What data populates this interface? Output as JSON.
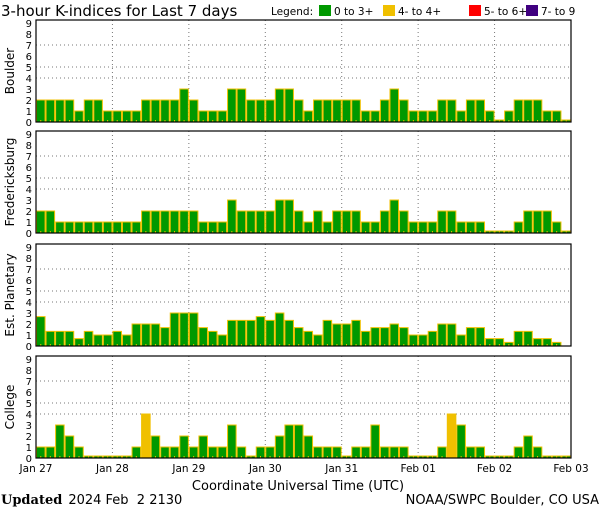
{
  "chart_data": {
    "title": "3-hour K-indices for Last 7 days",
    "type": "bar",
    "legend": {
      "label": "Legend:",
      "placement": "top-right",
      "items": [
        {
          "label": "0 to 3+",
          "color": "#009900"
        },
        {
          "label": "4- to 4+",
          "color": "#f0c000"
        },
        {
          "label": "5- to 6+",
          "color": "#ff0000"
        },
        {
          "label": "7- to 9",
          "color": "#400080"
        }
      ]
    },
    "bar_outline_color": "#f0c000",
    "xlabel": "Coordinate Universal Time (UTC)",
    "x_tick_labels": [
      "Jan 27",
      "Jan 28",
      "Jan 29",
      "Jan 30",
      "Jan 31",
      "Feb 01",
      "Feb 02",
      "Feb 03"
    ],
    "y_tick_labels": [
      "0",
      "1",
      "2",
      "3",
      "4",
      "5",
      "6",
      "7",
      "8",
      "9"
    ],
    "ylim": [
      0,
      9
    ],
    "gridlines_y": [
      4,
      5,
      7
    ],
    "gridlines_x": "day boundaries",
    "bars_per_day": 8,
    "panels": [
      {
        "name": "Boulder",
        "values": [
          2,
          2,
          2,
          2,
          1,
          2,
          2,
          1,
          1,
          1,
          1,
          2,
          2,
          2,
          2,
          3,
          2,
          1,
          1,
          1,
          3,
          3,
          2,
          2,
          2,
          3,
          3,
          2,
          1,
          2,
          2,
          2,
          2,
          2,
          1,
          1,
          2,
          3,
          2,
          1,
          1,
          1,
          2,
          2,
          1,
          2,
          2,
          1,
          0,
          1,
          2,
          2,
          2,
          1,
          1,
          0
        ]
      },
      {
        "name": "Fredericksburg",
        "values": [
          2,
          2,
          1,
          1,
          1,
          1,
          1,
          1,
          1,
          1,
          1,
          2,
          2,
          2,
          2,
          2,
          2,
          1,
          1,
          1,
          3,
          2,
          2,
          2,
          2,
          3,
          3,
          2,
          1,
          2,
          1,
          2,
          2,
          2,
          1,
          1,
          2,
          3,
          2,
          1,
          1,
          1,
          2,
          2,
          1,
          1,
          1,
          0,
          0,
          0,
          1,
          2,
          2,
          2,
          1,
          0
        ]
      },
      {
        "name": "Est. Planetary",
        "values": [
          2.67,
          1.33,
          1.33,
          1.33,
          0.67,
          1.33,
          1,
          1,
          1.33,
          1,
          2,
          2,
          2,
          1.67,
          3,
          3,
          3,
          1.67,
          1.33,
          1,
          2.33,
          2.33,
          2.33,
          2.67,
          2.33,
          3,
          2.33,
          1.67,
          1.33,
          1,
          2.33,
          2,
          2,
          2.33,
          1.33,
          1.67,
          1.67,
          2,
          1.67,
          1,
          1,
          1.33,
          2,
          2,
          1,
          1.67,
          1.67,
          0.67,
          0.67,
          0.33,
          1.33,
          1.33,
          0.67,
          0.67,
          0.33,
          null
        ]
      },
      {
        "name": "College",
        "values": [
          1,
          1,
          3,
          2,
          1,
          0,
          0,
          0,
          0,
          0,
          1,
          4,
          2,
          1,
          1,
          2,
          1,
          2,
          1,
          1,
          3,
          1,
          0,
          1,
          1,
          2,
          3,
          3,
          2,
          1,
          1,
          1,
          0,
          1,
          1,
          3,
          1,
          1,
          1,
          0,
          0,
          0,
          1,
          4,
          3,
          1,
          1,
          0,
          0,
          0,
          1,
          2,
          1,
          0,
          0,
          0
        ]
      }
    ]
  },
  "footer": {
    "updated_label": "Updated",
    "updated_value": "2024 Feb  2 2130",
    "credit": "NOAA/SWPC Boulder, CO USA"
  }
}
